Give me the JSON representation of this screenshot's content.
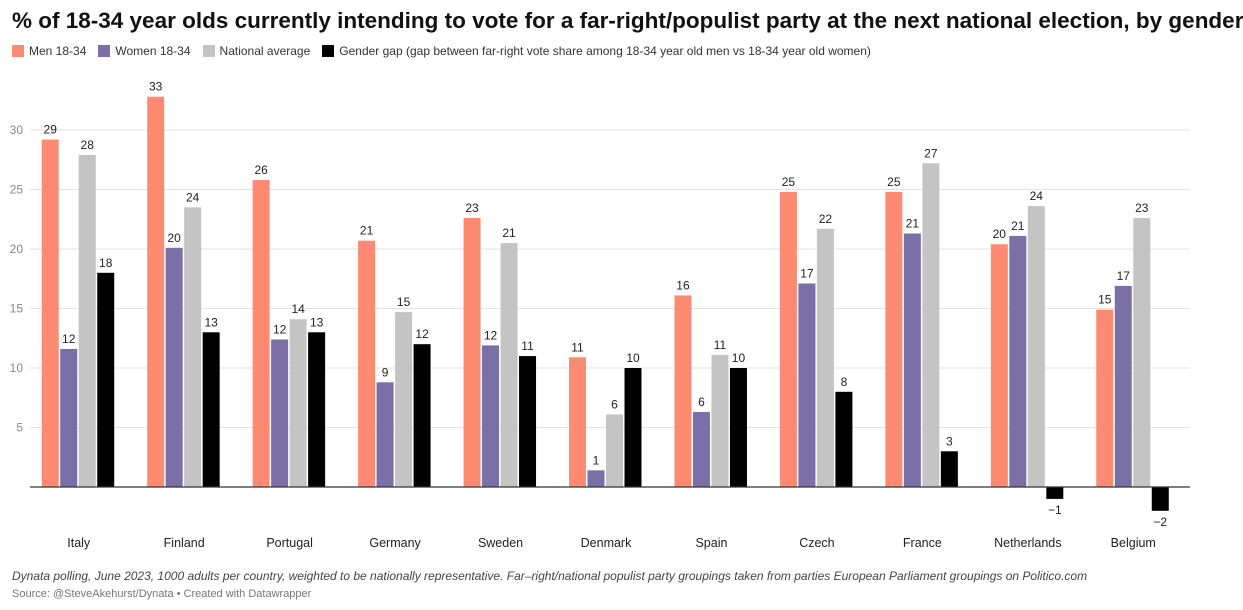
{
  "chart_data": {
    "type": "bar",
    "title": "% of 18-34 year olds currently intending to vote for a far-right/populist party at the next national election, by gender",
    "xlabel": "",
    "ylabel": "",
    "ylim": [
      -2,
      35
    ],
    "yticks": [
      5,
      10,
      15,
      20,
      25,
      30
    ],
    "grid": true,
    "legend_position": "top-left",
    "categories": [
      "Italy",
      "Finland",
      "Portugal",
      "Germany",
      "Sweden",
      "Denmark",
      "Spain",
      "Czech",
      "France",
      "Netherlands",
      "Belgium"
    ],
    "series": [
      {
        "name": "Men 18-34",
        "color": "#ff8a72",
        "values": [
          29.2,
          32.8,
          25.8,
          20.7,
          22.6,
          10.9,
          16.1,
          24.8,
          24.8,
          20.4,
          14.9
        ],
        "labels": [
          "29",
          "33",
          "26",
          "21",
          "23",
          "11",
          "16",
          "25",
          "25",
          "20",
          "15"
        ]
      },
      {
        "name": "Women 18-34",
        "color": "#7b6fa8",
        "values": [
          11.6,
          20.1,
          12.4,
          8.8,
          11.9,
          1.4,
          6.3,
          17.1,
          21.3,
          21.1,
          16.9
        ],
        "labels": [
          "12",
          "20",
          "12",
          "9",
          "12",
          "1",
          "6",
          "17",
          "21",
          "21",
          "17"
        ]
      },
      {
        "name": "National average",
        "color": "#c4c4c4",
        "values": [
          27.9,
          23.5,
          14.1,
          14.7,
          20.5,
          6.1,
          11.1,
          21.7,
          27.2,
          23.6,
          22.6
        ],
        "labels": [
          "28",
          "24",
          "14",
          "15",
          "21",
          "6",
          "11",
          "22",
          "27",
          "24",
          "23"
        ]
      },
      {
        "name": "Gender gap (gap between far-right vote share among 18-34 year old men vs 18-34 year old women)",
        "color": "#000000",
        "values": [
          18,
          13,
          13,
          12,
          11,
          10,
          10,
          8,
          3,
          -1,
          -2
        ],
        "labels": [
          "18",
          "13",
          "13",
          "12",
          "11",
          "10",
          "10",
          "8",
          "3",
          "−1",
          "−2"
        ]
      }
    ]
  },
  "footer": {
    "note": "Dynata polling, June 2023, 1000 adults per country, weighted to be nationally representative. Far–right/national populist party groupings taken from parties European Parliament groupings on Politico.com",
    "source": "Source: @SteveAkehurst/Dynata • Created with Datawrapper"
  }
}
